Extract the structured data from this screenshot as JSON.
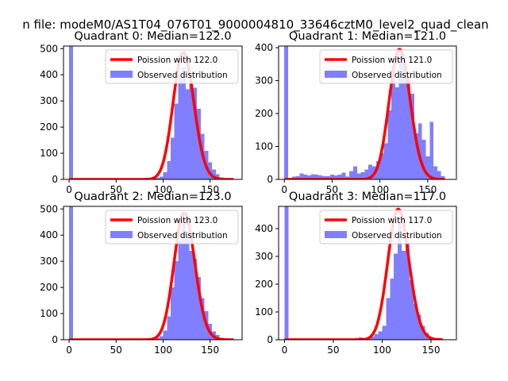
{
  "figure": {
    "suptitle": "n file: modeM0/AS1T04_076T01_9000004810_33646cztM0_level2_quad_clean"
  },
  "colors": {
    "poisson": "#ff0000",
    "observed": "#7f7fff"
  },
  "chart_data": [
    {
      "type": "bar",
      "title": "Quadrant 0: Median=122.0",
      "xlim": [
        -6,
        184
      ],
      "ylim": [
        0,
        510
      ],
      "xticks": [
        0,
        50,
        100,
        150
      ],
      "xtick_labels": [
        "0",
        "50",
        "100",
        "150"
      ],
      "yticks": [
        0,
        100,
        200,
        300,
        400,
        500
      ],
      "ytick_labels": [
        "0",
        "100",
        "200",
        "300",
        "400",
        "500"
      ],
      "legend": {
        "position": "upper right",
        "entries": [
          "Poission with 122.0",
          "Observed distribution"
        ]
      },
      "hist": {
        "name": "Observed distribution",
        "bin_width": 4,
        "bins": [
          [
            0,
            510
          ],
          [
            4,
            4
          ],
          [
            8,
            2
          ],
          [
            12,
            1
          ],
          [
            16,
            1
          ],
          [
            20,
            1
          ],
          [
            24,
            1
          ],
          [
            28,
            1
          ],
          [
            32,
            1
          ],
          [
            36,
            1
          ],
          [
            40,
            1
          ],
          [
            44,
            1
          ],
          [
            48,
            1
          ],
          [
            52,
            1
          ],
          [
            56,
            1
          ],
          [
            60,
            1
          ],
          [
            64,
            1
          ],
          [
            68,
            1
          ],
          [
            72,
            1
          ],
          [
            76,
            1
          ],
          [
            80,
            1
          ],
          [
            84,
            2
          ],
          [
            88,
            4
          ],
          [
            92,
            6
          ],
          [
            96,
            10
          ],
          [
            100,
            28
          ],
          [
            104,
            70
          ],
          [
            108,
            160
          ],
          [
            112,
            290
          ],
          [
            116,
            390
          ],
          [
            120,
            430
          ],
          [
            124,
            345
          ],
          [
            128,
            365
          ],
          [
            132,
            350
          ],
          [
            136,
            270
          ],
          [
            140,
            175
          ],
          [
            144,
            110
          ],
          [
            148,
            65
          ],
          [
            152,
            38
          ],
          [
            156,
            20
          ],
          [
            160,
            8
          ],
          [
            164,
            4
          ]
        ]
      },
      "poisson": {
        "name": "Poission with 122.0",
        "mean": 122,
        "peak": 485,
        "x_range": [
          0,
          175
        ]
      }
    },
    {
      "type": "bar",
      "title": "Quadrant 1: Median=121.0",
      "xlim": [
        -6,
        180
      ],
      "ylim": [
        0,
        405
      ],
      "xticks": [
        0,
        50,
        100,
        150
      ],
      "xtick_labels": [
        "0",
        "50",
        "100",
        "150"
      ],
      "yticks": [
        0,
        100,
        200,
        300,
        400
      ],
      "ytick_labels": [
        "0",
        "100",
        "200",
        "300",
        "400"
      ],
      "legend": {
        "position": "upper right",
        "entries": [
          "Poission with 121.0",
          "Observed distribution"
        ]
      },
      "hist": {
        "name": "Observed distribution",
        "bin_width": 4,
        "bins": [
          [
            0,
            405
          ],
          [
            4,
            5
          ],
          [
            8,
            8
          ],
          [
            12,
            10
          ],
          [
            16,
            18
          ],
          [
            20,
            14
          ],
          [
            24,
            12
          ],
          [
            28,
            16
          ],
          [
            32,
            14
          ],
          [
            36,
            12
          ],
          [
            40,
            10
          ],
          [
            44,
            10
          ],
          [
            48,
            14
          ],
          [
            52,
            12
          ],
          [
            56,
            14
          ],
          [
            60,
            20
          ],
          [
            64,
            8
          ],
          [
            68,
            25
          ],
          [
            72,
            40
          ],
          [
            76,
            18
          ],
          [
            80,
            22
          ],
          [
            84,
            30
          ],
          [
            88,
            45
          ],
          [
            92,
            40
          ],
          [
            96,
            55
          ],
          [
            100,
            80
          ],
          [
            104,
            110
          ],
          [
            108,
            210
          ],
          [
            112,
            330
          ],
          [
            116,
            280
          ],
          [
            120,
            385
          ],
          [
            124,
            360
          ],
          [
            128,
            310
          ],
          [
            132,
            260
          ],
          [
            136,
            140
          ],
          [
            140,
            170
          ],
          [
            144,
            120
          ],
          [
            148,
            70
          ],
          [
            152,
            175
          ],
          [
            156,
            40
          ],
          [
            160,
            25
          ],
          [
            164,
            10
          ]
        ]
      },
      "poisson": {
        "name": "Poission with 121.0",
        "mean": 121,
        "peak": 395,
        "x_range": [
          0,
          168
        ]
      }
    },
    {
      "type": "bar",
      "title": "Quadrant 2: Median=123.0",
      "xlim": [
        -6,
        184
      ],
      "ylim": [
        0,
        510
      ],
      "xticks": [
        0,
        50,
        100,
        150
      ],
      "xtick_labels": [
        "0",
        "50",
        "100",
        "150"
      ],
      "yticks": [
        0,
        100,
        200,
        300,
        400,
        500
      ],
      "ytick_labels": [
        "0",
        "100",
        "200",
        "300",
        "400",
        "500"
      ],
      "legend": {
        "position": "upper right",
        "entries": [
          "Poission with 123.0",
          "Observed distribution"
        ]
      },
      "hist": {
        "name": "Observed distribution",
        "bin_width": 4,
        "bins": [
          [
            0,
            510
          ],
          [
            4,
            3
          ],
          [
            8,
            2
          ],
          [
            12,
            1
          ],
          [
            16,
            1
          ],
          [
            20,
            1
          ],
          [
            24,
            1
          ],
          [
            28,
            1
          ],
          [
            32,
            1
          ],
          [
            36,
            1
          ],
          [
            40,
            1
          ],
          [
            44,
            1
          ],
          [
            48,
            1
          ],
          [
            52,
            1
          ],
          [
            56,
            1
          ],
          [
            60,
            1
          ],
          [
            64,
            1
          ],
          [
            68,
            1
          ],
          [
            72,
            1
          ],
          [
            76,
            1
          ],
          [
            80,
            2
          ],
          [
            84,
            4
          ],
          [
            88,
            6
          ],
          [
            92,
            8
          ],
          [
            96,
            14
          ],
          [
            100,
            35
          ],
          [
            104,
            90
          ],
          [
            108,
            200
          ],
          [
            112,
            300
          ],
          [
            116,
            380
          ],
          [
            120,
            460
          ],
          [
            124,
            390
          ],
          [
            128,
            340
          ],
          [
            132,
            310
          ],
          [
            136,
            240
          ],
          [
            140,
            160
          ],
          [
            144,
            110
          ],
          [
            148,
            60
          ],
          [
            152,
            32
          ],
          [
            156,
            18
          ],
          [
            160,
            8
          ],
          [
            164,
            4
          ]
        ]
      },
      "poisson": {
        "name": "Poission with 123.0",
        "mean": 123,
        "peak": 485,
        "x_range": [
          0,
          175
        ]
      }
    },
    {
      "type": "bar",
      "title": "Quadrant 3: Median=117.0",
      "xlim": [
        -6,
        176
      ],
      "ylim": [
        0,
        480
      ],
      "xticks": [
        0,
        50,
        100,
        150
      ],
      "xtick_labels": [
        "0",
        "50",
        "100",
        "150"
      ],
      "yticks": [
        0,
        100,
        200,
        300,
        400
      ],
      "ytick_labels": [
        "0",
        "100",
        "200",
        "300",
        "400"
      ],
      "legend": {
        "position": "upper right",
        "entries": [
          "Poission with 117.0",
          "Observed distribution"
        ]
      },
      "hist": {
        "name": "Observed distribution",
        "bin_width": 4,
        "bins": [
          [
            0,
            480
          ],
          [
            4,
            3
          ],
          [
            8,
            2
          ],
          [
            12,
            1
          ],
          [
            16,
            1
          ],
          [
            20,
            1
          ],
          [
            24,
            1
          ],
          [
            28,
            1
          ],
          [
            32,
            1
          ],
          [
            36,
            1
          ],
          [
            40,
            1
          ],
          [
            44,
            1
          ],
          [
            48,
            1
          ],
          [
            52,
            1
          ],
          [
            56,
            2
          ],
          [
            60,
            3
          ],
          [
            64,
            5
          ],
          [
            68,
            4
          ],
          [
            72,
            6
          ],
          [
            76,
            8
          ],
          [
            80,
            5
          ],
          [
            84,
            10
          ],
          [
            88,
            12
          ],
          [
            92,
            20
          ],
          [
            96,
            30
          ],
          [
            100,
            50
          ],
          [
            104,
            150
          ],
          [
            108,
            220
          ],
          [
            112,
            310
          ],
          [
            116,
            420
          ],
          [
            120,
            320
          ],
          [
            124,
            350
          ],
          [
            128,
            215
          ],
          [
            132,
            130
          ],
          [
            136,
            90
          ],
          [
            140,
            50
          ],
          [
            144,
            25
          ],
          [
            148,
            10
          ],
          [
            152,
            5
          ],
          [
            156,
            3
          ]
        ]
      },
      "poisson": {
        "name": "Poission with 117.0",
        "mean": 117,
        "peak": 470,
        "x_range": [
          0,
          162
        ]
      }
    }
  ]
}
